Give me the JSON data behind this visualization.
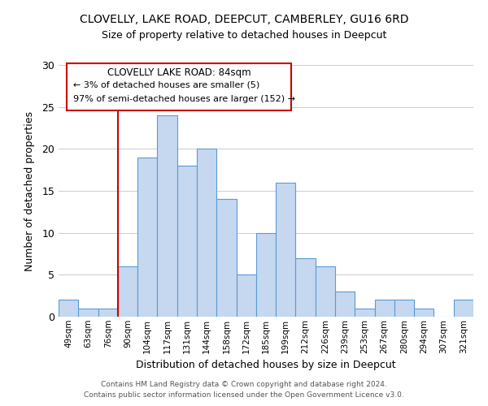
{
  "title": "CLOVELLY, LAKE ROAD, DEEPCUT, CAMBERLEY, GU16 6RD",
  "subtitle": "Size of property relative to detached houses in Deepcut",
  "xlabel": "Distribution of detached houses by size in Deepcut",
  "ylabel": "Number of detached properties",
  "categories": [
    "49sqm",
    "63sqm",
    "76sqm",
    "90sqm",
    "104sqm",
    "117sqm",
    "131sqm",
    "144sqm",
    "158sqm",
    "172sqm",
    "185sqm",
    "199sqm",
    "212sqm",
    "226sqm",
    "239sqm",
    "253sqm",
    "267sqm",
    "280sqm",
    "294sqm",
    "307sqm",
    "321sqm"
  ],
  "values": [
    2,
    1,
    1,
    6,
    19,
    24,
    18,
    20,
    14,
    5,
    10,
    16,
    7,
    6,
    3,
    1,
    2,
    2,
    1,
    0,
    2
  ],
  "bar_color": "#c5d8f0",
  "bar_edge_color": "#5b9bd5",
  "vline_color": "#cc0000",
  "ylim": [
    0,
    30
  ],
  "yticks": [
    0,
    5,
    10,
    15,
    20,
    25,
    30
  ],
  "annotation_title": "CLOVELLY LAKE ROAD: 84sqm",
  "annotation_line1": "← 3% of detached houses are smaller (5)",
  "annotation_line2": "97% of semi-detached houses are larger (152) →",
  "annotation_box_color": "#ffffff",
  "annotation_box_edge": "#cc0000",
  "footer_line1": "Contains HM Land Registry data © Crown copyright and database right 2024.",
  "footer_line2": "Contains public sector information licensed under the Open Government Licence v3.0.",
  "background_color": "#ffffff",
  "grid_color": "#cccccc"
}
